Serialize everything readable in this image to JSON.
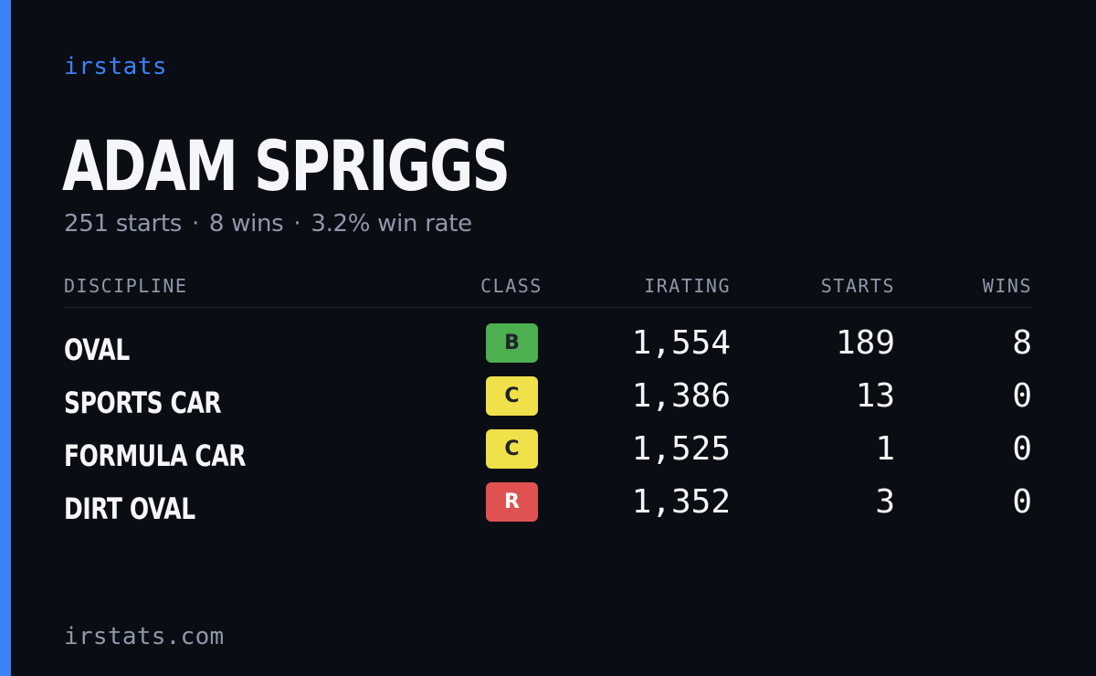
{
  "colors": {
    "accent": "#3b82f6",
    "background": "#0b0d14",
    "text_primary": "#f4f6fa",
    "text_muted": "#8e98ab",
    "class_b": "#4caf50",
    "class_c": "#f0e14a",
    "class_r": "#e05252"
  },
  "brand": "irstats",
  "driver": {
    "name": "ADAM SPRIGGS"
  },
  "summary": {
    "starts": "251 starts",
    "wins": "8 wins",
    "win_rate": "3.2% win rate",
    "separator": "·"
  },
  "table": {
    "headers": {
      "discipline": "DISCIPLINE",
      "class": "CLASS",
      "irating": "IRATING",
      "starts": "STARTS",
      "wins": "WINS"
    },
    "rows": [
      {
        "discipline": "OVAL",
        "class": "B",
        "class_color": "#4caf50",
        "irating": "1,554",
        "starts": "189",
        "wins": "8"
      },
      {
        "discipline": "SPORTS CAR",
        "class": "C",
        "class_color": "#f0e14a",
        "irating": "1,386",
        "starts": "13",
        "wins": "0"
      },
      {
        "discipline": "FORMULA CAR",
        "class": "C",
        "class_color": "#f0e14a",
        "irating": "1,525",
        "starts": "1",
        "wins": "0"
      },
      {
        "discipline": "DIRT OVAL",
        "class": "R",
        "class_color": "#e05252",
        "irating": "1,352",
        "starts": "3",
        "wins": "0"
      }
    ]
  },
  "footer": {
    "url": "irstats.com"
  }
}
